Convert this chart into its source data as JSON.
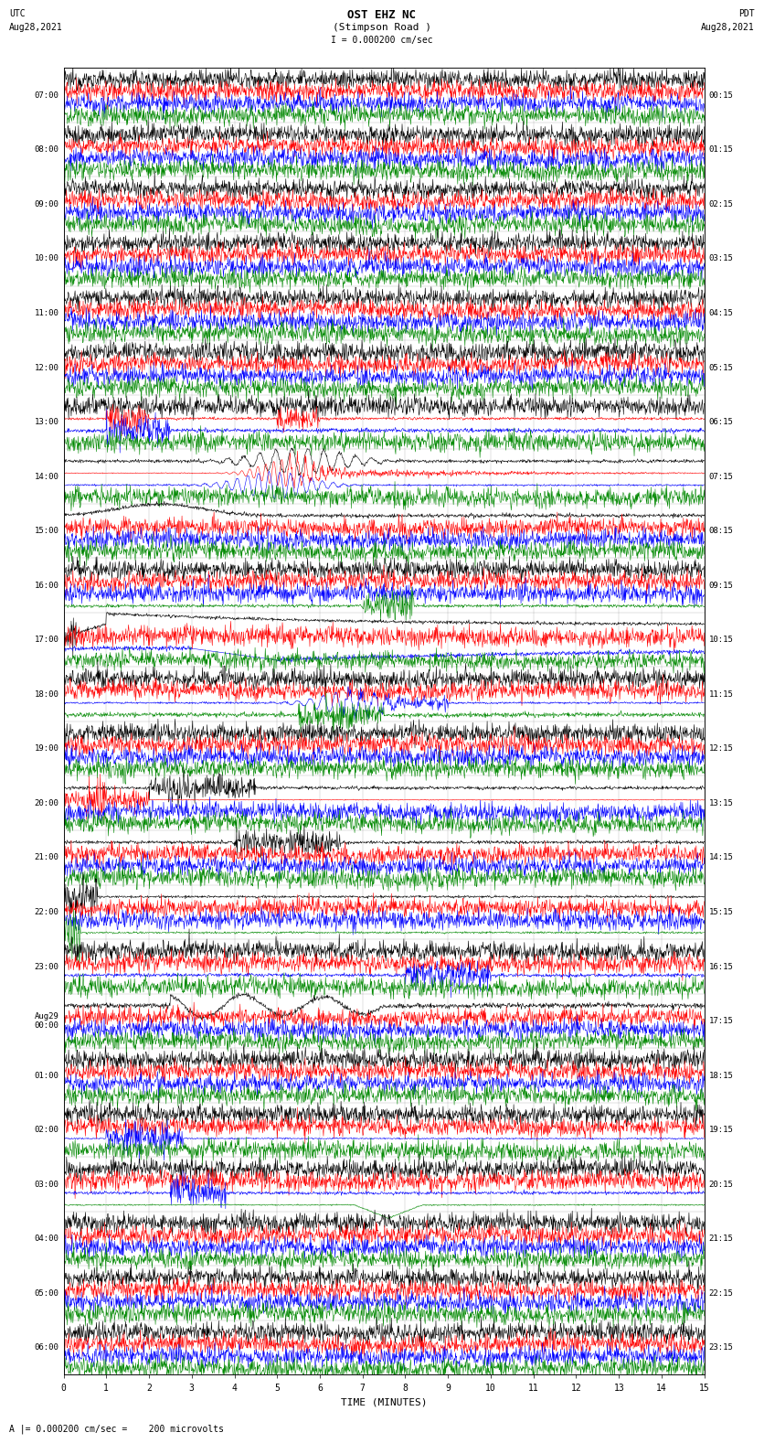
{
  "title_line1": "OST EHZ NC",
  "title_line2": "(Stimpson Road )",
  "title_line3": "I = 0.000200 cm/sec",
  "left_header_line1": "UTC",
  "left_header_line2": "Aug28,2021",
  "right_header_line1": "PDT",
  "right_header_line2": "Aug28,2021",
  "footer": "A |= 0.000200 cm/sec =    200 microvolts",
  "xlabel": "TIME (MINUTES)",
  "bg_color": "#ffffff",
  "trace_colors": [
    "#000000",
    "#ff0000",
    "#0000ff",
    "#008800"
  ],
  "num_rows": 24,
  "left_times": [
    "07:00",
    "08:00",
    "09:00",
    "10:00",
    "11:00",
    "12:00",
    "13:00",
    "14:00",
    "15:00",
    "16:00",
    "17:00",
    "18:00",
    "19:00",
    "20:00",
    "21:00",
    "22:00",
    "23:00",
    "Aug29\n00:00",
    "01:00",
    "02:00",
    "03:00",
    "04:00",
    "05:00",
    "06:00"
  ],
  "right_times": [
    "00:15",
    "01:15",
    "02:15",
    "03:15",
    "04:15",
    "05:15",
    "06:15",
    "07:15",
    "08:15",
    "09:15",
    "10:15",
    "11:15",
    "12:15",
    "13:15",
    "14:15",
    "15:15",
    "16:15",
    "17:15",
    "18:15",
    "19:15",
    "20:15",
    "21:15",
    "22:15",
    "23:15"
  ],
  "grid_color": "#888888",
  "line_width": 0.4,
  "fig_width": 8.5,
  "fig_height": 16.13,
  "dpi": 100
}
